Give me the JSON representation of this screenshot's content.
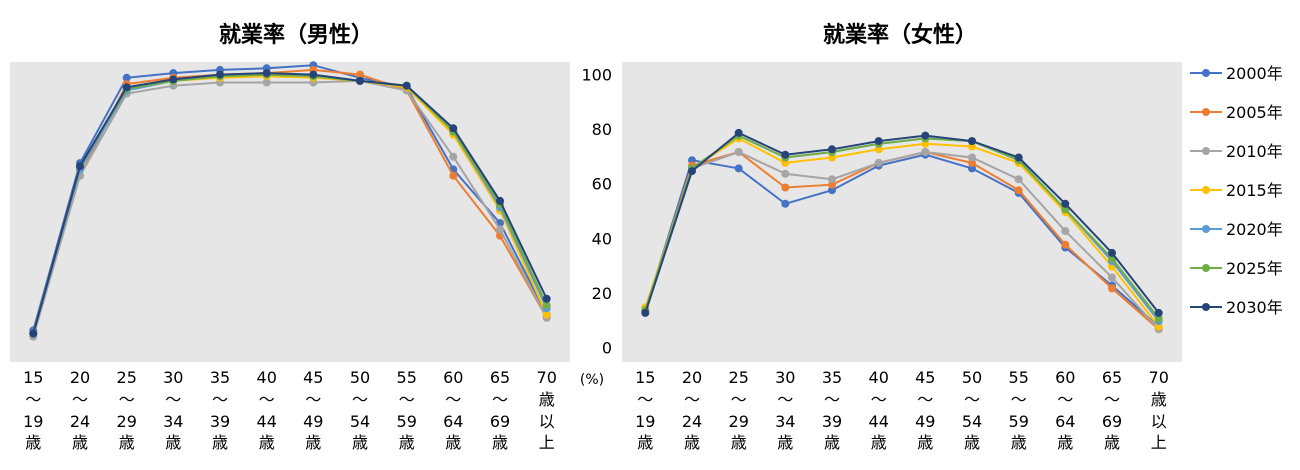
{
  "chart_data": [
    {
      "type": "line",
      "title": "就業率（男性）",
      "categories": [
        [
          "15",
          "〜",
          "19",
          "歳"
        ],
        [
          "20",
          "〜",
          "24",
          "歳"
        ],
        [
          "25",
          "〜",
          "29",
          "歳"
        ],
        [
          "30",
          "〜",
          "34",
          "歳"
        ],
        [
          "35",
          "〜",
          "39",
          "歳"
        ],
        [
          "40",
          "〜",
          "44",
          "歳"
        ],
        [
          "45",
          "〜",
          "49",
          "歳"
        ],
        [
          "50",
          "〜",
          "54",
          "歳"
        ],
        [
          "55",
          "〜",
          "59",
          "歳"
        ],
        [
          "60",
          "〜",
          "64",
          "歳"
        ],
        [
          "65",
          "〜",
          "69",
          "歳"
        ],
        [
          "70",
          "歳",
          "以",
          "上"
        ]
      ],
      "ylim": [
        0,
        100
      ],
      "series": [
        {
          "name": "2000年",
          "values": [
            15,
            68,
            95,
            96.5,
            97.5,
            98,
            99,
            95,
            92,
            66,
            49,
            20
          ]
        },
        {
          "name": "2005年",
          "values": [
            14,
            64,
            93,
            95,
            96,
            96.5,
            97.5,
            96,
            91,
            64,
            45,
            19
          ]
        },
        {
          "name": "2010年",
          "values": [
            13,
            64,
            90,
            92.5,
            93.5,
            93.5,
            93.5,
            94,
            91,
            70,
            47,
            19
          ]
        },
        {
          "name": "2015年",
          "values": [
            14,
            66,
            91,
            94,
            95,
            95.5,
            95,
            94,
            92,
            77,
            53,
            20
          ]
        },
        {
          "name": "2020年",
          "values": [
            14,
            66,
            91,
            94,
            95.5,
            96,
            95.5,
            94,
            92.5,
            78,
            54,
            22
          ]
        },
        {
          "name": "2025年",
          "values": [
            14,
            67,
            91.5,
            94,
            95.5,
            96,
            95.5,
            94,
            92.5,
            78,
            55,
            23
          ]
        },
        {
          "name": "2030年",
          "values": [
            14,
            67,
            92,
            94.5,
            96,
            96.5,
            96,
            94,
            92.5,
            79,
            56,
            25
          ]
        }
      ]
    },
    {
      "type": "line",
      "title": "就業率（女性）",
      "categories": [
        [
          "15",
          "〜",
          "19",
          "歳"
        ],
        [
          "20",
          "〜",
          "24",
          "歳"
        ],
        [
          "25",
          "〜",
          "29",
          "歳"
        ],
        [
          "30",
          "〜",
          "34",
          "歳"
        ],
        [
          "35",
          "〜",
          "39",
          "歳"
        ],
        [
          "40",
          "〜",
          "44",
          "歳"
        ],
        [
          "45",
          "〜",
          "49",
          "歳"
        ],
        [
          "50",
          "〜",
          "54",
          "歳"
        ],
        [
          "55",
          "〜",
          "59",
          "歳"
        ],
        [
          "60",
          "〜",
          "64",
          "歳"
        ],
        [
          "65",
          "〜",
          "69",
          "歳"
        ],
        [
          "70",
          "歳",
          "以",
          "上"
        ]
      ],
      "ylim": [
        0,
        100
      ],
      "yticks": [
        0,
        20,
        40,
        60,
        80,
        100
      ],
      "ylabel": "(%)",
      "series": [
        {
          "name": "2000年",
          "values": [
            14,
            69,
            66,
            53,
            58,
            67,
            71,
            66,
            57,
            37,
            23,
            8
          ]
        },
        {
          "name": "2005年",
          "values": [
            14,
            67,
            72,
            59,
            60,
            68,
            72,
            68,
            58,
            38,
            22,
            7
          ]
        },
        {
          "name": "2010年",
          "values": [
            14,
            66,
            72,
            64,
            62,
            68,
            72,
            70,
            62,
            43,
            26,
            7
          ]
        },
        {
          "name": "2015年",
          "values": [
            15,
            66,
            77,
            68,
            70,
            73,
            75,
            74,
            68,
            50,
            30,
            8
          ]
        },
        {
          "name": "2020年",
          "values": [
            14,
            66,
            78,
            70,
            72,
            75,
            77,
            76,
            69,
            51,
            32,
            10
          ]
        },
        {
          "name": "2025年",
          "values": [
            14,
            66,
            78,
            70,
            72,
            75,
            77,
            76,
            69,
            51,
            33,
            11
          ]
        },
        {
          "name": "2030年",
          "values": [
            13,
            65,
            79,
            71,
            73,
            76,
            78,
            76,
            70,
            53,
            35,
            13
          ]
        }
      ]
    }
  ],
  "legend": {
    "position": "right",
    "items": [
      {
        "name": "2000年",
        "color": "#4472C4"
      },
      {
        "name": "2005年",
        "color": "#ED7D31"
      },
      {
        "name": "2010年",
        "color": "#A5A5A5"
      },
      {
        "name": "2015年",
        "color": "#FFC000"
      },
      {
        "name": "2020年",
        "color": "#5B9BD5"
      },
      {
        "name": "2025年",
        "color": "#70AD47"
      },
      {
        "name": "2030年",
        "color": "#264478"
      }
    ]
  }
}
